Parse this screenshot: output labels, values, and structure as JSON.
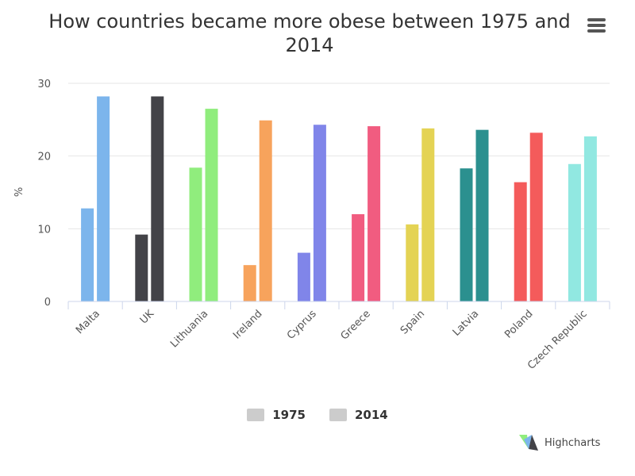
{
  "title": "How countries became more obese between 1975 and 2014",
  "menu_icon": "hamburger-menu-icon",
  "credits": "Highcharts",
  "chart_data": {
    "type": "bar",
    "title": "How countries became more obese between 1975 and 2014",
    "ylabel": "%",
    "xlabel": "",
    "ylim": [
      0,
      30
    ],
    "yticks": [
      0,
      10,
      20,
      30
    ],
    "grid": true,
    "legend_position": "bottom",
    "categories": [
      "Malta",
      "UK",
      "Lithuania",
      "Ireland",
      "Cyprus",
      "Greece",
      "Spain",
      "Latvia",
      "Poland",
      "Czech Republic"
    ],
    "series": [
      {
        "name": "1975",
        "values": [
          12.8,
          9.2,
          18.4,
          5.0,
          6.7,
          12.0,
          10.6,
          18.3,
          16.4,
          18.9
        ]
      },
      {
        "name": "2014",
        "values": [
          28.2,
          28.2,
          26.5,
          24.9,
          24.3,
          24.1,
          23.8,
          23.6,
          23.2,
          22.7
        ]
      }
    ],
    "colors": {
      "1975": [
        "#7cb5ec",
        "#434348",
        "#90ed7d",
        "#f7a35c",
        "#8085e9",
        "#f15c80",
        "#e4d354",
        "#2b908f",
        "#f45b5b",
        "#91e8e1"
      ],
      "2014": [
        "#7cb5ec",
        "#434348",
        "#90ed7d",
        "#f7a35c",
        "#8085e9",
        "#f15c80",
        "#e4d354",
        "#2b908f",
        "#f45b5b",
        "#91e8e1"
      ]
    },
    "legend_color": "#cccccc"
  }
}
